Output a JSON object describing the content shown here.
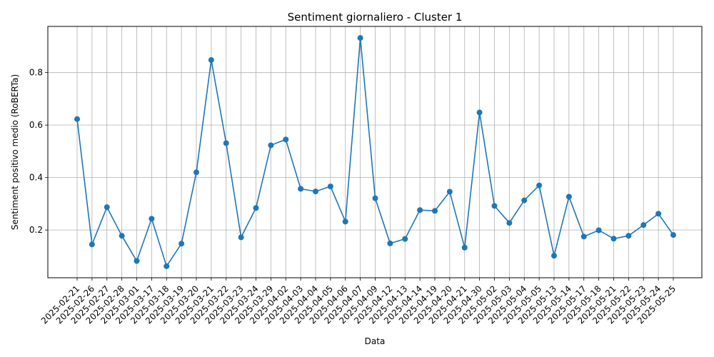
{
  "chart_data": {
    "type": "line",
    "title": "Sentiment giornaliero - Cluster 1",
    "xlabel": "Data",
    "ylabel": "Sentiment positivo medio (RoBERTa)",
    "grid": true,
    "color": "#1f77b4",
    "x": [
      "2025-02-21",
      "2025-02-26",
      "2025-02-27",
      "2025-02-28",
      "2025-03-01",
      "2025-03-17",
      "2025-03-18",
      "2025-03-19",
      "2025-03-20",
      "2025-03-21",
      "2025-03-22",
      "2025-03-23",
      "2025-03-24",
      "2025-03-29",
      "2025-04-02",
      "2025-04-03",
      "2025-04-04",
      "2025-04-05",
      "2025-04-06",
      "2025-04-07",
      "2025-04-09",
      "2025-04-12",
      "2025-04-13",
      "2025-04-14",
      "2025-04-19",
      "2025-04-20",
      "2025-04-21",
      "2025-04-30",
      "2025-05-02",
      "2025-05-03",
      "2025-05-04",
      "2025-05-05",
      "2025-05-13",
      "2025-05-14",
      "2025-05-17",
      "2025-05-18",
      "2025-05-21",
      "2025-05-22",
      "2025-05-23",
      "2025-05-24",
      "2025-05-25"
    ],
    "values": [
      0.623,
      0.145,
      0.287,
      0.178,
      0.082,
      0.243,
      0.062,
      0.148,
      0.42,
      0.848,
      0.531,
      0.172,
      0.284,
      0.523,
      0.545,
      0.357,
      0.347,
      0.366,
      0.232,
      0.932,
      0.321,
      0.149,
      0.166,
      0.276,
      0.273,
      0.346,
      0.133,
      0.648,
      0.292,
      0.227,
      0.313,
      0.37,
      0.102,
      0.327,
      0.175,
      0.199,
      0.167,
      0.178,
      0.219,
      0.262,
      0.181
    ],
    "yticks": [
      0.2,
      0.4,
      0.6,
      0.8
    ],
    "ytick_labels": [
      "0.2",
      "0.4",
      "0.6",
      "0.8"
    ],
    "ylim": [
      0.018,
      0.976
    ]
  }
}
